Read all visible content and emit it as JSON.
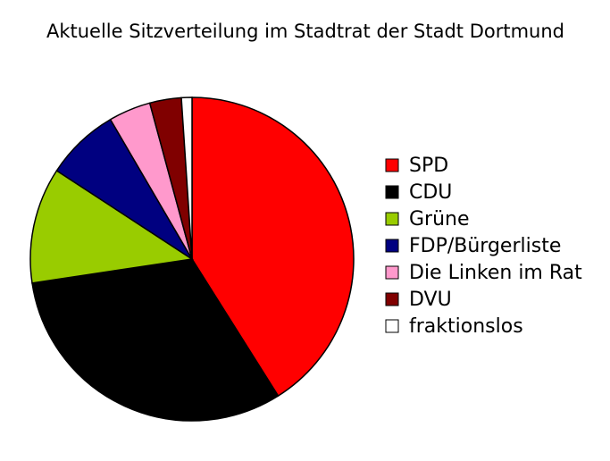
{
  "chart_data": {
    "type": "pie",
    "title": "Aktuelle Sitzverteilung im Stadtrat der Stadt Dortmund",
    "categories": [
      "SPD",
      "CDU",
      "Grüne",
      "FDP/Bürgerliste",
      "Die Linken im Rat",
      "DVU",
      "fraktionslos"
    ],
    "values": [
      39,
      30,
      11,
      7,
      4,
      3,
      1
    ],
    "colors": [
      "#ff0000",
      "#000000",
      "#99cc00",
      "#000080",
      "#ff99cc",
      "#800000",
      "#ffffff"
    ]
  }
}
